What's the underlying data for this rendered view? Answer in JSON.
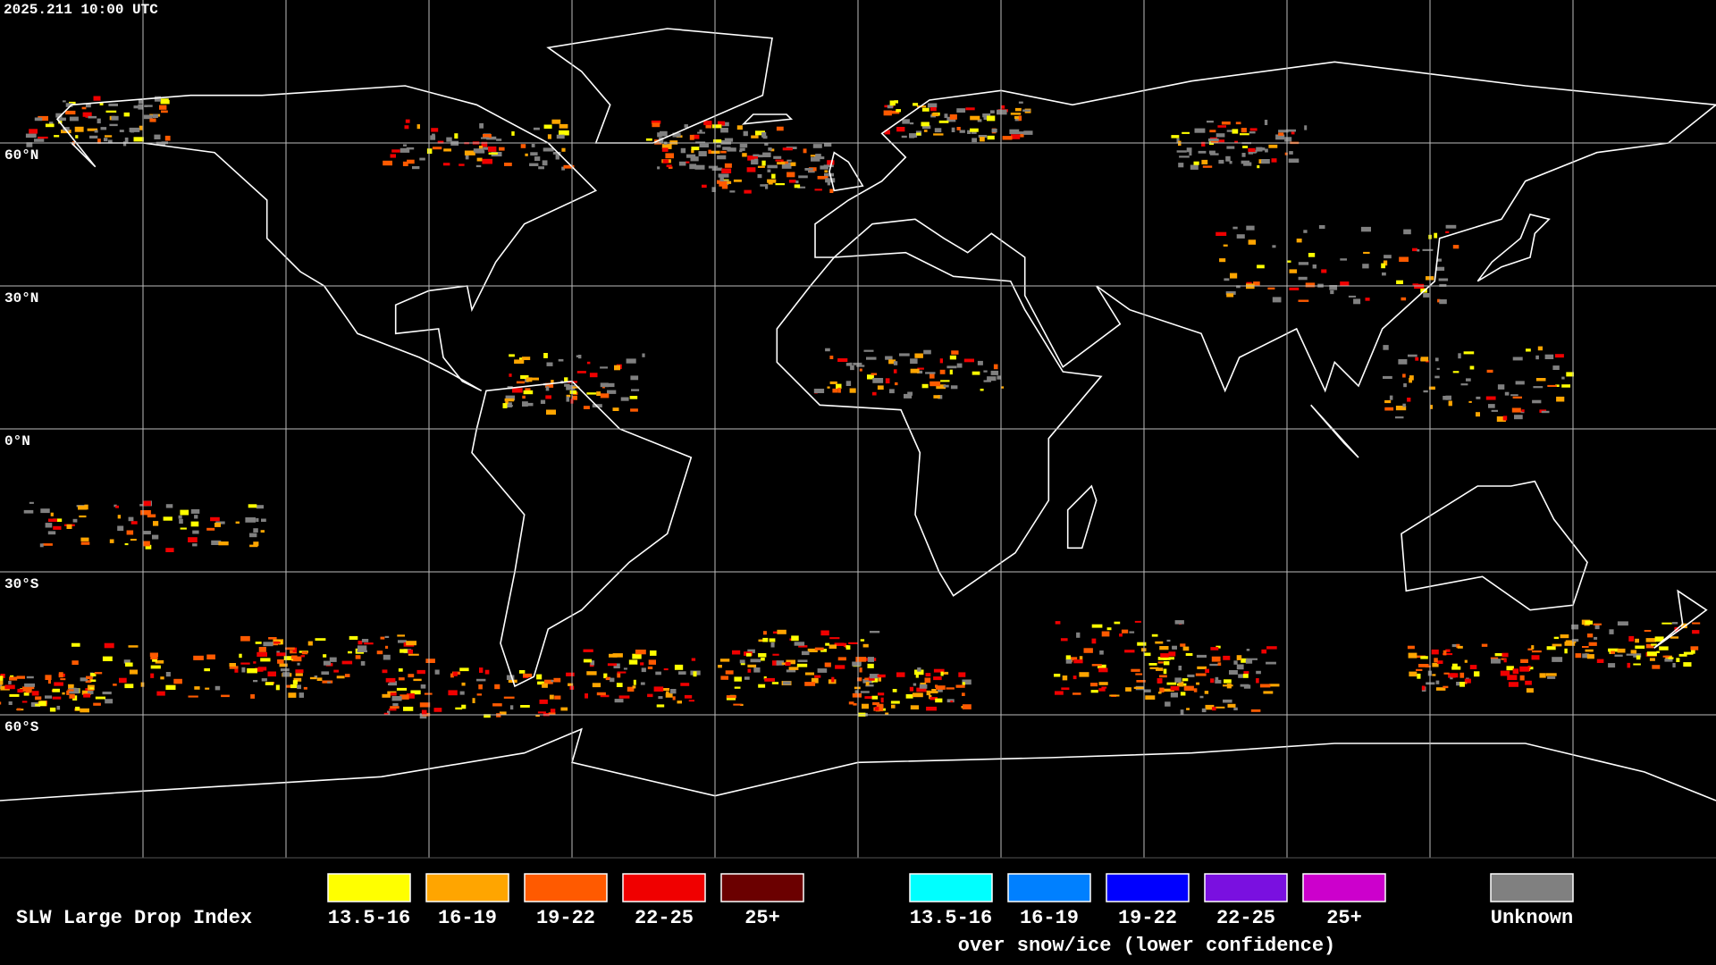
{
  "timestamp": "2025.211 10:00 UTC",
  "latitude_labels": [
    "60°N",
    "30°N",
    "0°N",
    "30°S",
    "60°S"
  ],
  "legend": {
    "title": "SLW Large Drop Index",
    "groups": [
      {
        "items": [
          {
            "label": "13.5-16",
            "color": "#ffff00"
          },
          {
            "label": "16-19",
            "color": "#ffa500"
          },
          {
            "label": "19-22",
            "color": "#ff5a00"
          },
          {
            "label": "22-25",
            "color": "#f00000"
          },
          {
            "label": "25+",
            "color": "#6b0000"
          }
        ]
      },
      {
        "items": [
          {
            "label": "13.5-16",
            "color": "#00ffff"
          },
          {
            "label": "16-19",
            "color": "#0080ff"
          },
          {
            "label": "19-22",
            "color": "#0000ff"
          },
          {
            "label": "22-25",
            "color": "#7a10e0"
          },
          {
            "label": "25+",
            "color": "#cc00cc"
          }
        ],
        "caption": "over snow/ice (lower confidence)"
      }
    ],
    "unknown": {
      "label": "Unknown",
      "color": "#808080"
    }
  }
}
